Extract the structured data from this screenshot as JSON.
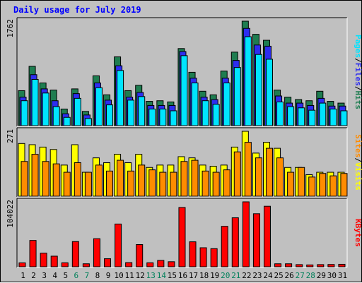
{
  "colors": {
    "frame_bg": "#c0c0c0",
    "pages": "#00e4ff",
    "files": "#2d2df0",
    "hits": "#1e7d50",
    "sites": "#ff8c00",
    "visits": "#ffff00",
    "kbytes": "#ff0000",
    "title": "#0000ff",
    "weekend_label": "#00805a"
  },
  "chart_data": {
    "type": "bar",
    "title": "Daily usage for July 2019",
    "categories": [
      "1",
      "2",
      "3",
      "4",
      "5",
      "6",
      "7",
      "8",
      "9",
      "10",
      "11",
      "12",
      "13",
      "14",
      "15",
      "16",
      "17",
      "18",
      "19",
      "20",
      "21",
      "22",
      "23",
      "24",
      "25",
      "26",
      "27",
      "28",
      "29",
      "30",
      "31"
    ],
    "weekend_days": [
      "6",
      "7",
      "13",
      "14",
      "20",
      "21",
      "27",
      "28"
    ],
    "panels": [
      {
        "name": "hits_files_pages",
        "ymax_label": "1762",
        "ylim": [
          0,
          1762
        ],
        "side_labels": [
          "Pages",
          "Files",
          "Hits"
        ],
        "series": [
          {
            "name": "Hits",
            "values": [
              590,
              1000,
              720,
              600,
              280,
              620,
              240,
              840,
              520,
              1160,
              590,
              680,
              410,
              420,
              400,
              1300,
              900,
              580,
              520,
              920,
              1240,
              1762,
              1540,
              1440,
              600,
              480,
              440,
              420,
              580,
              410,
              380
            ]
          },
          {
            "name": "Files",
            "values": [
              480,
              860,
              620,
              420,
              200,
              540,
              180,
              720,
              430,
              1010,
              480,
              560,
              340,
              340,
              340,
              1250,
              800,
              480,
              440,
              800,
              1100,
              1640,
              1360,
              1340,
              500,
              380,
              380,
              340,
              460,
              330,
              330
            ]
          },
          {
            "name": "Pages",
            "values": [
              420,
              780,
              550,
              320,
              140,
              460,
              120,
              640,
              350,
              930,
              430,
              490,
              280,
              280,
              250,
              1180,
              720,
              420,
              360,
              720,
              980,
              1500,
              1200,
              1120,
              400,
              320,
              300,
              260,
              380,
              280,
              250
            ]
          }
        ]
      },
      {
        "name": "visits_sites",
        "ymax_label": "271",
        "ylim": [
          0,
          271
        ],
        "side_labels": [
          "Sites",
          "Visits"
        ],
        "series": [
          {
            "name": "Visits",
            "values": [
              220,
              215,
              205,
              195,
              130,
              215,
              100,
              160,
              140,
              175,
              140,
              175,
              120,
              130,
              130,
              165,
              160,
              130,
              125,
              130,
              205,
              271,
              180,
              225,
              200,
              120,
              120,
              90,
              100,
              100,
              100
            ]
          },
          {
            "name": "Sites",
            "values": [
              145,
              175,
              145,
              135,
              100,
              140,
              100,
              130,
              105,
              150,
              105,
              130,
              110,
              100,
              100,
              145,
              150,
              105,
              100,
              110,
              185,
              225,
              160,
              200,
              160,
              100,
              120,
              80,
              95,
              85,
              95
            ]
          }
        ]
      },
      {
        "name": "kbytes",
        "ymax_label": "104022",
        "ylim": [
          0,
          104022
        ],
        "side_labels": [
          "KBytes"
        ],
        "series": [
          {
            "name": "KBytes",
            "values": [
              6300,
              42200,
              21800,
              17000,
              6400,
              40400,
              4800,
              45000,
              12900,
              68500,
              6700,
              35600,
              6400,
              10200,
              8100,
              95000,
              40000,
              30500,
              29000,
              64800,
              78500,
              104022,
              85000,
              97000,
              4800,
              4800,
              3500,
              3000,
              3500,
              3700,
              4000
            ]
          }
        ]
      }
    ]
  }
}
